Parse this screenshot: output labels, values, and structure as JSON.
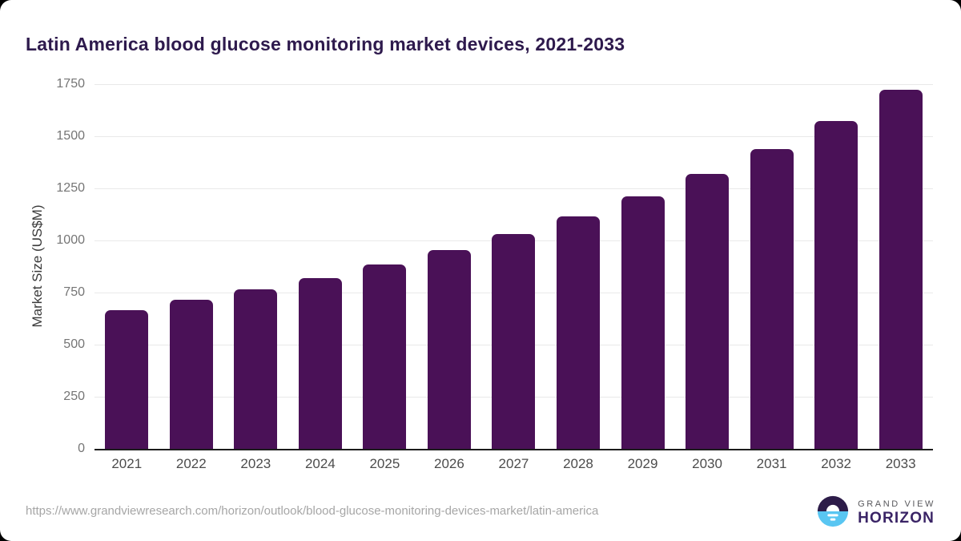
{
  "header": {
    "title": "Latin America blood glucose monitoring market devices, 2021-2033"
  },
  "chart_data": {
    "type": "bar",
    "title": "Latin America blood glucose monitoring market devices, 2021-2033",
    "categories": [
      "2021",
      "2022",
      "2023",
      "2024",
      "2025",
      "2026",
      "2027",
      "2028",
      "2029",
      "2030",
      "2031",
      "2032",
      "2033"
    ],
    "values": [
      665,
      715,
      765,
      820,
      885,
      955,
      1030,
      1115,
      1210,
      1320,
      1440,
      1575,
      1725
    ],
    "xlabel": "",
    "ylabel": "Market Size (US$M)",
    "ylim": [
      0,
      1750
    ],
    "yticks": [
      0,
      250,
      500,
      750,
      1000,
      1250,
      1500,
      1750
    ],
    "grid": true,
    "legend_position": "none",
    "bar_color": "#4a1157",
    "gridline_color": "#e9e9e9",
    "axis_line_color": "#1c1c1c",
    "title_color": "#2e1a4d",
    "tick_label_color": "#757575",
    "x_label_color": "#4c4c4c"
  },
  "footer": {
    "source_url": "https://www.grandviewresearch.com/horizon/outlook/blood-glucose-monitoring-devices-market/latin-america",
    "logo": {
      "line1": "GRAND VIEW",
      "line2": "HORIZON",
      "circle_top_color": "#2d1c49",
      "circle_bottom_color": "#59c6f2"
    }
  }
}
